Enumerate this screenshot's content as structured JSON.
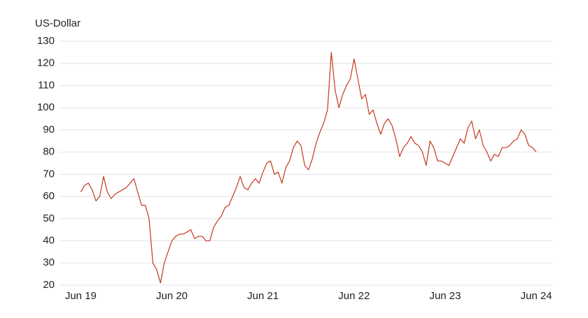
{
  "chart_data": {
    "type": "line",
    "y_label": "US-Dollar",
    "color": "#c4391f",
    "grid": true,
    "x": [
      0,
      0.5,
      1,
      1.5,
      2,
      2.5,
      3,
      3.5,
      4,
      4.5,
      5,
      5.5,
      6,
      6.5,
      7,
      7.5,
      8,
      8.5,
      9,
      9.5,
      10,
      10.5,
      11,
      11.5,
      12,
      12.5,
      13,
      13.5,
      14,
      14.5,
      15,
      15.5,
      16,
      16.5,
      17,
      17.5,
      18,
      18.5,
      19,
      19.5,
      20,
      20.5,
      21,
      21.5,
      22,
      22.5,
      23,
      23.5,
      24,
      24.5,
      25,
      25.5,
      26,
      26.5,
      27,
      27.5,
      28,
      28.5,
      29,
      29.5,
      30,
      30.5,
      31,
      31.5,
      32,
      32.5,
      33,
      33.5,
      34,
      34.5,
      35,
      35.5,
      36,
      36.5,
      37,
      37.5,
      38,
      38.5,
      39,
      39.5,
      40,
      40.5,
      41,
      41.5,
      42,
      42.5,
      43,
      43.5,
      44,
      44.5,
      45,
      45.5,
      46,
      46.5,
      47,
      47.5,
      48,
      48.5,
      49,
      49.5,
      50,
      50.5,
      51,
      51.5,
      52,
      52.5,
      53,
      53.5,
      54,
      54.5,
      55,
      55.5,
      56,
      56.5,
      57,
      57.5,
      58,
      58.5,
      59,
      59.5,
      60
    ],
    "values": [
      62,
      65,
      66,
      63,
      58,
      60,
      69,
      62,
      59,
      61,
      62,
      63,
      64,
      66,
      68,
      62,
      56,
      56,
      50,
      30,
      27,
      21,
      30,
      35,
      40,
      42,
      43,
      43,
      44,
      45,
      41,
      42,
      42,
      40,
      40,
      46,
      49,
      51,
      55,
      56,
      60,
      64,
      69,
      64,
      63,
      66,
      68,
      66,
      71,
      75,
      76,
      70,
      71,
      66,
      73,
      76,
      82,
      85,
      83,
      74,
      72,
      77,
      84,
      89,
      93,
      99,
      125,
      108,
      100,
      106,
      110,
      113,
      122,
      113,
      104,
      106,
      97,
      99,
      93,
      88,
      93,
      95,
      92,
      86,
      78,
      82,
      84,
      87,
      84,
      83,
      80,
      74,
      85,
      82,
      76,
      76,
      75,
      74,
      78,
      82,
      86,
      84,
      91,
      94,
      86,
      90,
      83,
      80,
      76,
      79,
      78,
      82,
      82,
      83,
      85,
      86,
      90,
      88,
      83,
      82,
      80
    ],
    "xlim": [
      -2.8,
      62.2
    ],
    "xticks": [
      {
        "value": 0,
        "label": "Jun 19"
      },
      {
        "value": 12,
        "label": "Jun 20"
      },
      {
        "value": 24,
        "label": "Jun 21"
      },
      {
        "value": 36,
        "label": "Jun 22"
      },
      {
        "value": 48,
        "label": "Jun 23"
      },
      {
        "value": 60,
        "label": "Jun 24"
      }
    ],
    "ylim": [
      20,
      130
    ],
    "yticks": [
      20,
      30,
      40,
      50,
      60,
      70,
      80,
      90,
      100,
      110,
      120,
      130
    ]
  }
}
